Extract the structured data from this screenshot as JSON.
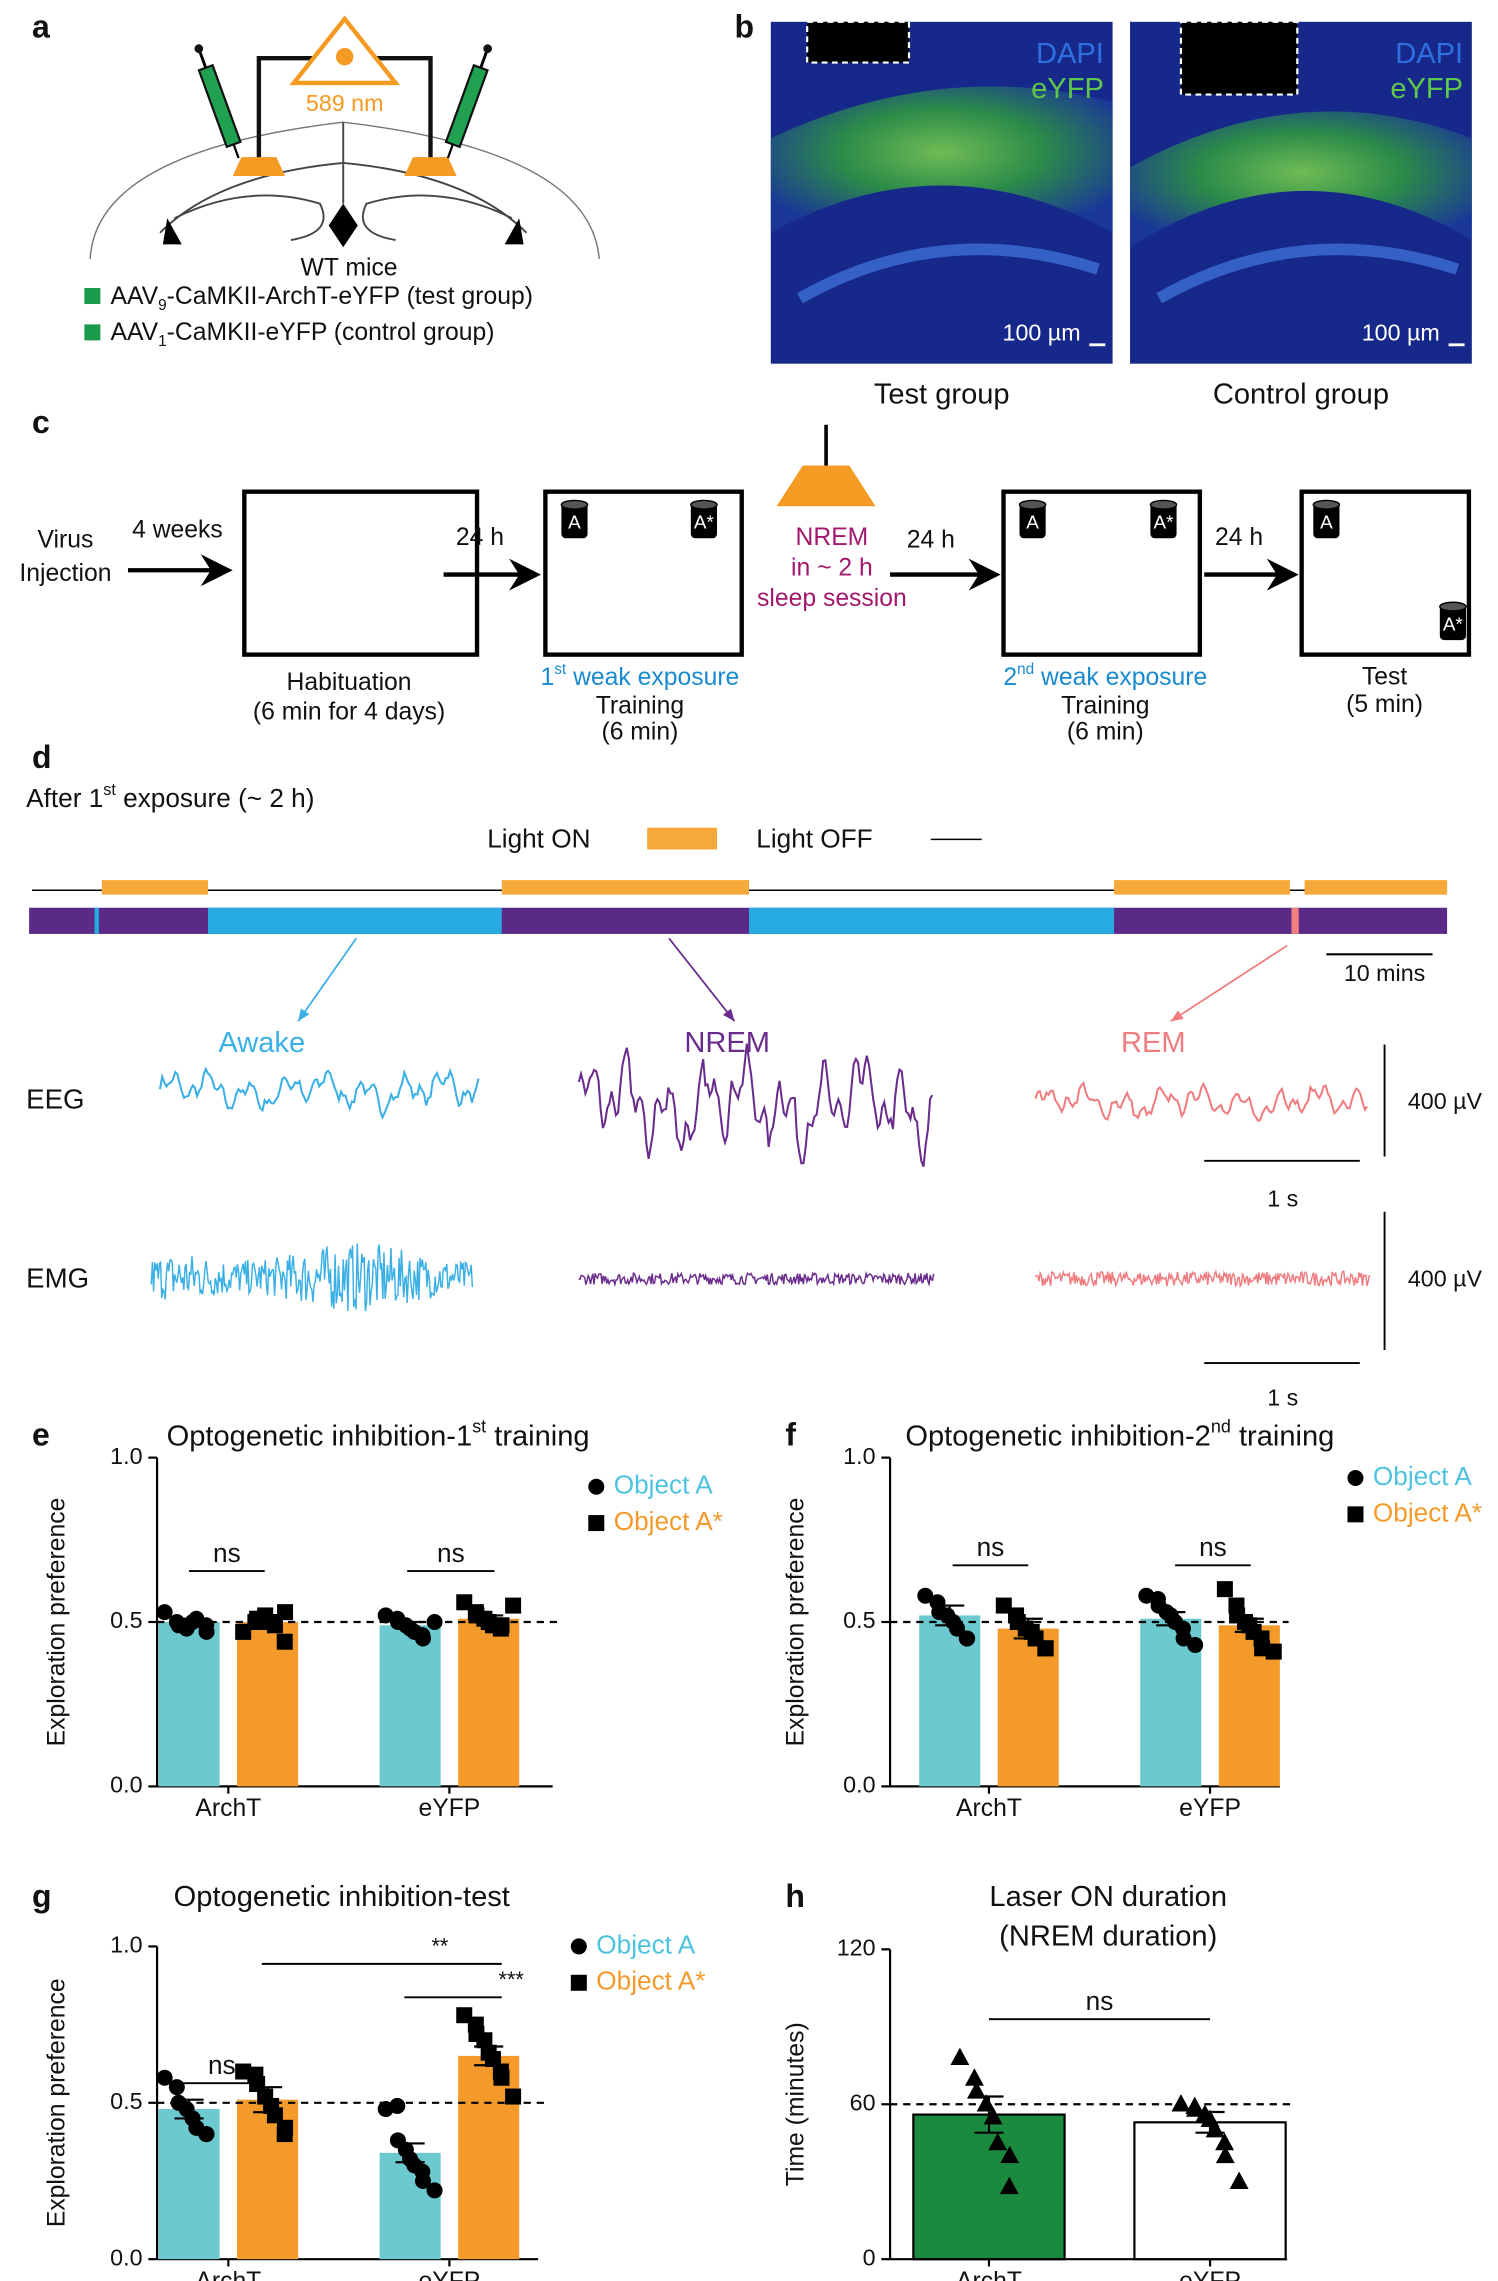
{
  "panel_a": {
    "label": "a",
    "wavelength": "589 nm",
    "mouse": "WT mice",
    "groups": [
      {
        "prefix": "AAV",
        "sub": "9",
        "rest": "-CaMKII-ArchT-eYFP (test group)"
      },
      {
        "prefix": "AAV",
        "sub": "1",
        "rest": "-CaMKII-eYFP (control group)"
      }
    ]
  },
  "panel_b": {
    "label": "b",
    "images": [
      {
        "stain1": "DAPI",
        "stain2": "eYFP",
        "scale": "100 µm",
        "caption": "Test group"
      },
      {
        "stain1": "DAPI",
        "stain2": "eYFP",
        "scale": "100 µm",
        "caption": "Control group"
      }
    ]
  },
  "panel_c": {
    "label": "c",
    "start": [
      "Virus",
      "Injection"
    ],
    "arrows": [
      "4 weeks",
      "24 h",
      "24 h",
      "24 h"
    ],
    "objects": [
      "A",
      "A*"
    ],
    "sleep": [
      "NREM",
      "in ~ 2 h",
      "sleep session"
    ],
    "habituation": [
      "Habituation",
      "(6 min for 4 days)"
    ],
    "training1": {
      "pre": "1",
      "sup": "st",
      "rest": " weak exposure",
      "lines": [
        "Training",
        "(6 min)"
      ]
    },
    "training2": {
      "pre": "2",
      "sup": "nd",
      "rest": " weak exposure",
      "lines": [
        "Training",
        "(6 min)"
      ]
    },
    "test": [
      "Test",
      "(5 min)"
    ]
  },
  "panel_d": {
    "label": "d",
    "heading": {
      "pre": "After 1",
      "sup": "st",
      "rest": " exposure (~ 2 h)"
    },
    "light_on": "Light ON",
    "light_off": "Light OFF",
    "time_scale": "10 mins",
    "states": [
      "Awake",
      "NREM",
      "REM"
    ],
    "signals": [
      "EEG",
      "EMG"
    ],
    "amplitude_scale": "400 µV",
    "trace_time_scale": "1 s"
  },
  "chart_data": [
    {
      "type": "bar",
      "panel_label": "e",
      "title": {
        "pre": "Optogenetic inhibition-1",
        "sup": "st",
        "rest": " training"
      },
      "ylabel": "Exploration preference",
      "categories": [
        "ArchT",
        "eYFP"
      ],
      "ylim": [
        0,
        1
      ],
      "yticks": [
        {
          "value": 0,
          "label": "0.0"
        },
        {
          "value": 0.5,
          "label": "0.5"
        },
        {
          "value": 1,
          "label": "1.0"
        }
      ],
      "reference_line": 0.5,
      "legend": true,
      "series": [
        {
          "name": "Object A",
          "color": "#6cc9cf",
          "text_color": "#4ec3e0",
          "marker": "circle",
          "values": [
            0.5,
            0.49
          ],
          "errors": [
            0.01,
            0.01
          ],
          "points": [
            [
              0.53,
              0.5,
              0.49,
              0.48,
              0.5,
              0.51,
              0.47,
              0.49
            ],
            [
              0.52,
              0.51,
              0.5,
              0.49,
              0.48,
              0.47,
              0.46,
              0.45,
              0.5
            ]
          ]
        },
        {
          "name": "Object A*",
          "color": "#f39a2b",
          "text_color": "#f39a2b",
          "marker": "square",
          "values": [
            0.5,
            0.51
          ],
          "errors": [
            0.01,
            0.01
          ],
          "points": [
            [
              0.47,
              0.5,
              0.51,
              0.52,
              0.5,
              0.49,
              0.53,
              0.44
            ],
            [
              0.56,
              0.53,
              0.52,
              0.51,
              0.5,
              0.49,
              0.48,
              0.49,
              0.55
            ]
          ]
        }
      ],
      "annotations": [
        "ns",
        "ns"
      ]
    },
    {
      "type": "bar",
      "panel_label": "f",
      "title": {
        "pre": "Optogenetic inhibition-2",
        "sup": "nd",
        "rest": " training"
      },
      "ylabel": "Exploration preference",
      "categories": [
        "ArchT",
        "eYFP"
      ],
      "ylim": [
        0,
        1
      ],
      "yticks": [
        {
          "value": 0,
          "label": "0.0"
        },
        {
          "value": 0.5,
          "label": "0.5"
        },
        {
          "value": 1,
          "label": "1.0"
        }
      ],
      "reference_line": 0.5,
      "legend": true,
      "series": [
        {
          "name": "Object A",
          "color": "#6cc9cf",
          "text_color": "#4ec3e0",
          "marker": "circle",
          "values": [
            0.52,
            0.51
          ],
          "errors": [
            0.03,
            0.02
          ],
          "points": [
            [
              0.58,
              0.56,
              0.53,
              0.52,
              0.5,
              0.48,
              0.45,
              0.45
            ],
            [
              0.58,
              0.57,
              0.55,
              0.53,
              0.52,
              0.5,
              0.48,
              0.45,
              0.43
            ]
          ]
        },
        {
          "name": "Object A*",
          "color": "#f39a2b",
          "text_color": "#f39a2b",
          "marker": "square",
          "values": [
            0.48,
            0.49
          ],
          "errors": [
            0.03,
            0.02
          ],
          "points": [
            [
              0.55,
              0.52,
              0.5,
              0.48,
              0.47,
              0.45,
              0.42,
              0.42
            ],
            [
              0.6,
              0.55,
              0.52,
              0.5,
              0.49,
              0.47,
              0.45,
              0.42,
              0.41
            ]
          ]
        }
      ],
      "annotations": [
        "ns",
        "ns"
      ]
    },
    {
      "type": "bar",
      "panel_label": "g",
      "title": "Optogenetic inhibition-test",
      "ylabel": "Exploration preference",
      "categories": [
        "ArchT",
        "eYFP"
      ],
      "ylim": [
        0,
        1
      ],
      "yticks": [
        {
          "value": 0,
          "label": "0.0"
        },
        {
          "value": 0.5,
          "label": "0.5"
        },
        {
          "value": 1,
          "label": "1.0"
        }
      ],
      "reference_line": 0.5,
      "legend": true,
      "series": [
        {
          "name": "Object A",
          "color": "#6cc9cf",
          "text_color": "#4ec3e0",
          "marker": "circle",
          "values": [
            0.48,
            0.34
          ],
          "errors": [
            0.03,
            0.03
          ],
          "points": [
            [
              0.58,
              0.55,
              0.5,
              0.48,
              0.45,
              0.42,
              0.4,
              0.4
            ],
            [
              0.48,
              0.49,
              0.38,
              0.35,
              0.32,
              0.3,
              0.28,
              0.25,
              0.22
            ]
          ]
        },
        {
          "name": "Object A*",
          "color": "#f39a2b",
          "text_color": "#f39a2b",
          "marker": "square",
          "values": [
            0.51,
            0.65
          ],
          "errors": [
            0.04,
            0.03
          ],
          "points": [
            [
              0.6,
              0.59,
              0.56,
              0.52,
              0.49,
              0.46,
              0.42,
              0.4
            ],
            [
              0.78,
              0.75,
              0.72,
              0.7,
              0.66,
              0.64,
              0.6,
              0.58,
              0.52
            ]
          ]
        }
      ],
      "annotations": [
        "ns",
        "**",
        "***"
      ]
    },
    {
      "type": "bar",
      "panel_label": "h",
      "title": "Laser ON duration",
      "subtitle": "(NREM duration)",
      "ylabel": "Time (minutes)",
      "categories": [
        "ArchT",
        "eYFP"
      ],
      "ylim": [
        0,
        120
      ],
      "yticks": [
        0,
        60,
        120
      ],
      "reference_line": 60,
      "legend": false,
      "series": [
        {
          "colors": [
            "#1b8a3f",
            "#ffffff"
          ],
          "marker": "triangle",
          "values": [
            56,
            53
          ],
          "errors": [
            7,
            4
          ],
          "points": [
            [
              78,
              70,
              65,
              60,
              55,
              45,
              40,
              28
            ],
            [
              60,
              59,
              58,
              56,
              54,
              50,
              45,
              40,
              30
            ]
          ]
        }
      ],
      "annotations": [
        "ns"
      ]
    }
  ]
}
